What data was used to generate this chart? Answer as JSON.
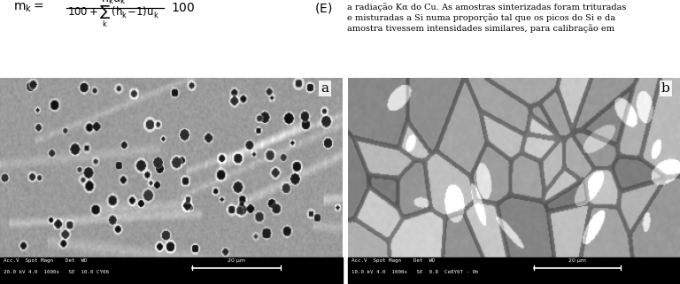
{
  "fig_width": 7.68,
  "fig_height": 3.21,
  "dpi": 100,
  "bg_color": "#ffffff",
  "sem_info_left_line1": "Acc.V  Spot Magn    Det  WD",
  "sem_info_left_line2": "20.0 kV 4.0  1000x   SE  10.0 CY06",
  "sem_info_right_line1": "Acc.V  Spot Magn    Det  WD",
  "sem_info_right_line2": "10.0 kV 4.0  1000x   SE  9.8  Ce8Y6T - 0h",
  "scalebar_text_left": "20 μm",
  "scalebar_text_right": "20 μm"
}
